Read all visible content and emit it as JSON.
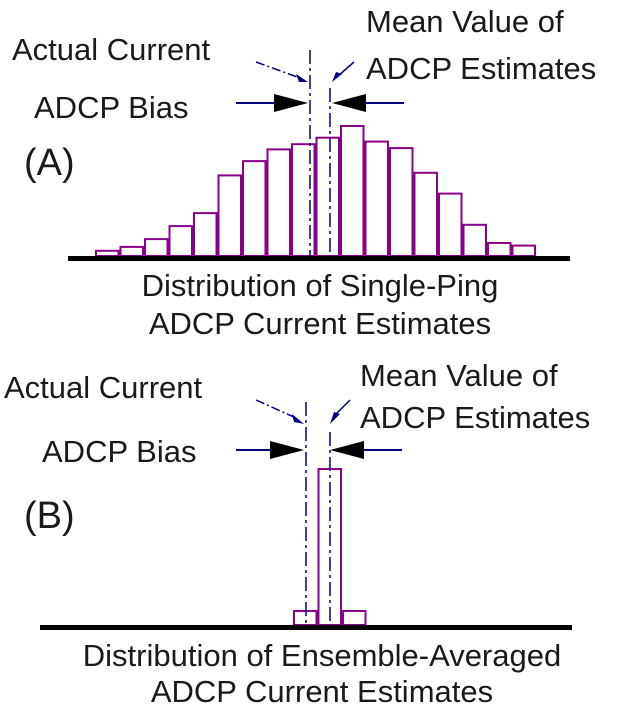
{
  "colors": {
    "bar": "#8B008B",
    "guide": "#000080",
    "baseline": "#000000",
    "text": "#1a1a1a"
  },
  "panels": [
    {
      "id": "A",
      "label": "(A)",
      "actual_current": "Actual Current",
      "mean_value_line1": "Mean Value of",
      "mean_value_line2": "ADCP Estimates",
      "bias": "ADCP Bias",
      "caption_line1": "Distribution of Single-Ping",
      "caption_line2": "ADCP Current Estimates",
      "bars": [
        0.04,
        0.07,
        0.13,
        0.23,
        0.33,
        0.62,
        0.73,
        0.82,
        0.86,
        0.91,
        1.0,
        0.88,
        0.83,
        0.64,
        0.48,
        0.24,
        0.1,
        0.08
      ]
    },
    {
      "id": "B",
      "label": "(B)",
      "actual_current": "Actual Current",
      "mean_value_line1": "Mean Value of",
      "mean_value_line2": "ADCP Estimates",
      "bias": "ADCP Bias",
      "caption_line1": "Distribution of Ensemble-Averaged",
      "caption_line2": "ADCP Current Estimates",
      "bars": [
        0.09,
        1.0,
        0.09
      ]
    }
  ]
}
